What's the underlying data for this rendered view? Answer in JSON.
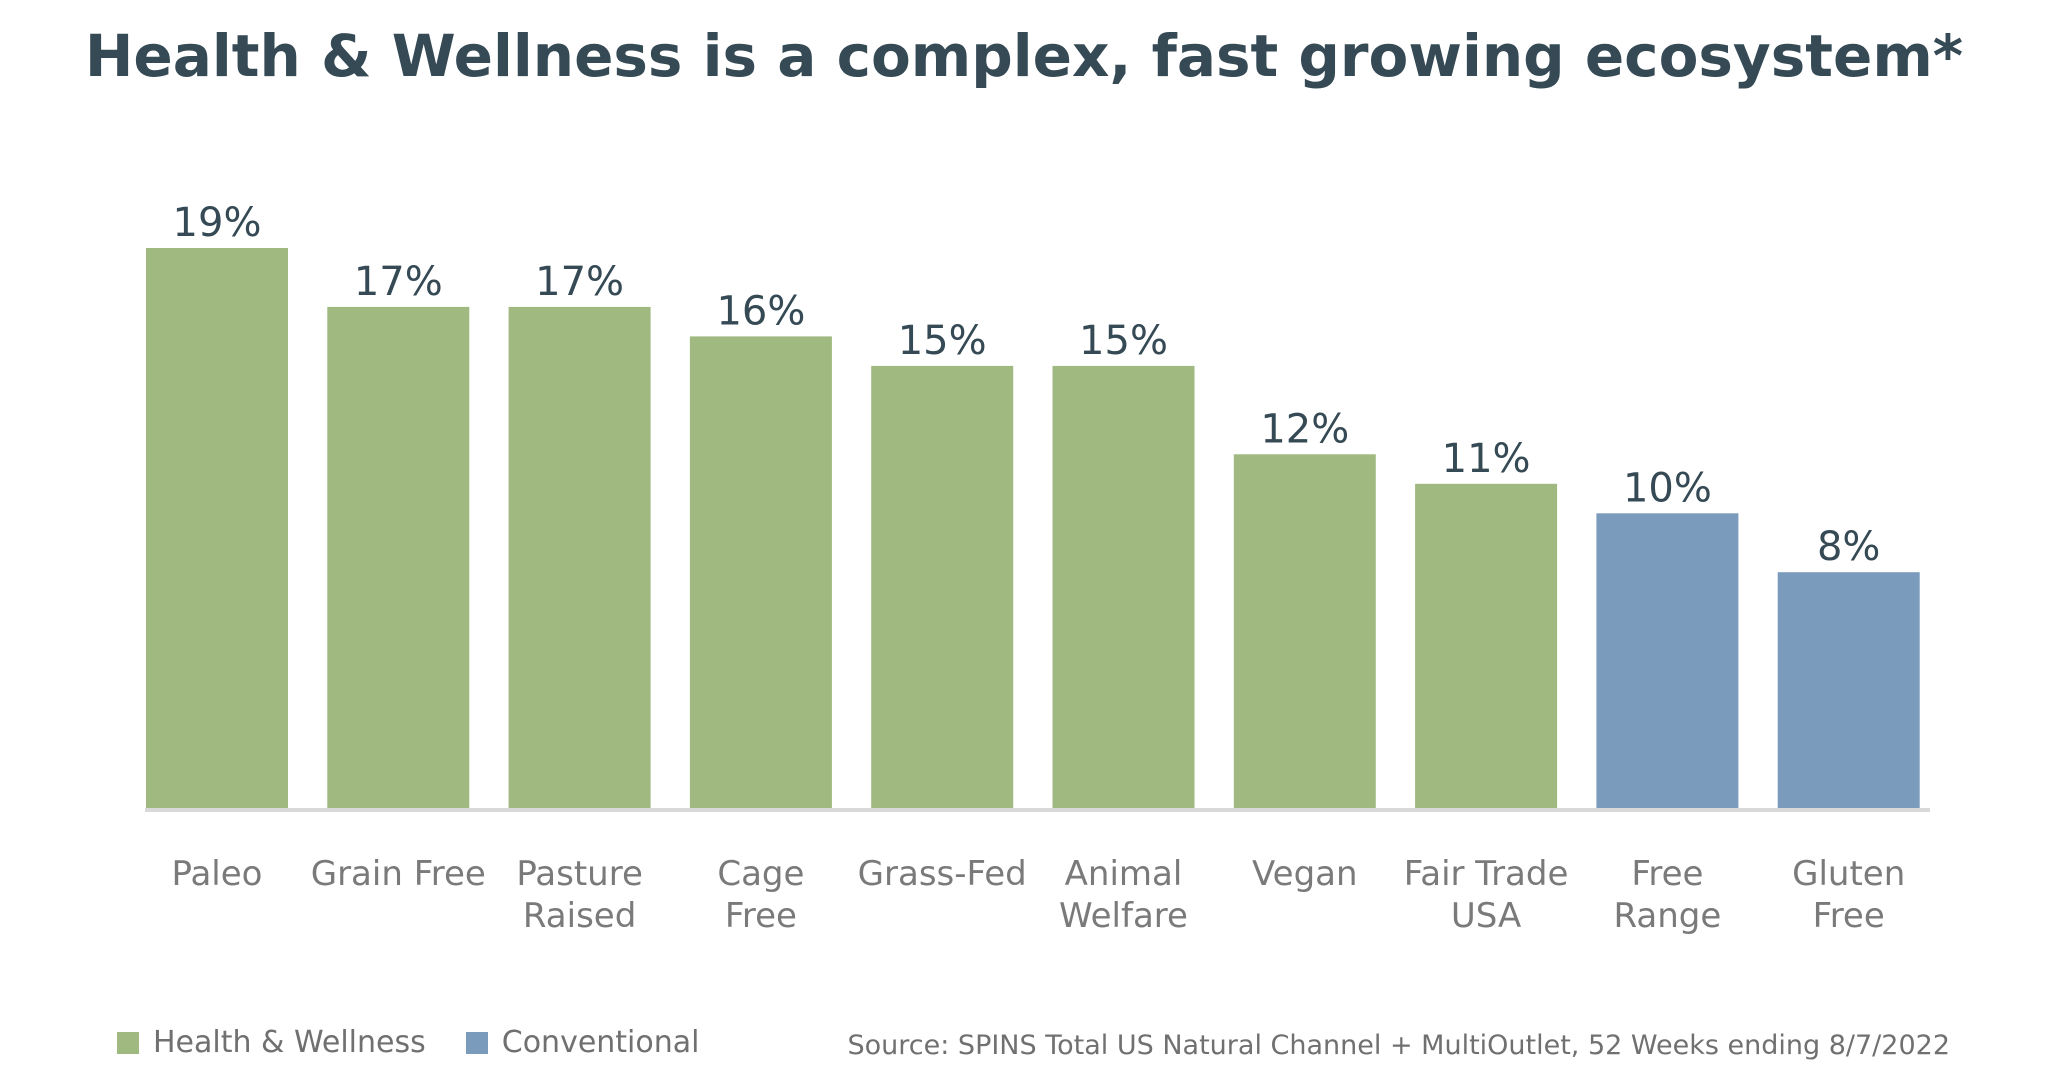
{
  "title": "Health & Wellness is a complex, fast growing ecosystem*",
  "source": "Source: SPINS Total US Natural Channel + MultiOutlet, 52 Weeks ending 8/7/2022",
  "legend": [
    {
      "name": "Health & Wellness",
      "color": "#a0b981"
    },
    {
      "name": "Conventional",
      "color": "#7b9bbd"
    }
  ],
  "chart_data": {
    "type": "bar",
    "title": "Health & Wellness is a complex, fast growing ecosystem*",
    "categories": [
      [
        "Paleo"
      ],
      [
        "Grain Free"
      ],
      [
        "Pasture",
        "Raised"
      ],
      [
        "Cage",
        "Free"
      ],
      [
        "Grass-Fed"
      ],
      [
        "Animal",
        "Welfare"
      ],
      [
        "Vegan"
      ],
      [
        "Fair Trade",
        "USA"
      ],
      [
        "Free",
        "Range"
      ],
      [
        "Gluten",
        "Free"
      ]
    ],
    "values": [
      19,
      17,
      17,
      16,
      15,
      15,
      12,
      11,
      10,
      8
    ],
    "value_labels": [
      "19%",
      "17%",
      "17%",
      "16%",
      "15%",
      "15%",
      "12%",
      "11%",
      "10%",
      "8%"
    ],
    "groups": [
      "Health & Wellness",
      "Health & Wellness",
      "Health & Wellness",
      "Health & Wellness",
      "Health & Wellness",
      "Health & Wellness",
      "Health & Wellness",
      "Health & Wellness",
      "Conventional",
      "Conventional"
    ],
    "xlabel": "",
    "ylabel": "",
    "ylim": [
      0,
      19
    ],
    "grid": false,
    "legend_position": "bottom-left"
  }
}
